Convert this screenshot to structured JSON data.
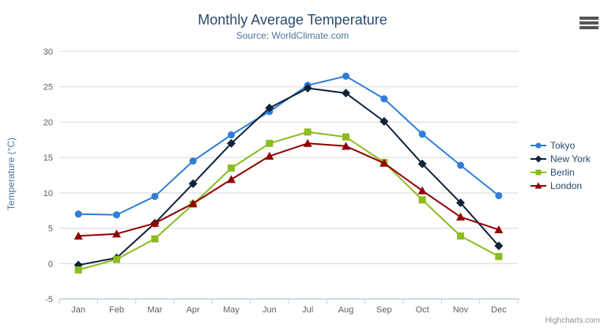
{
  "chart_data": {
    "type": "line",
    "title": "Monthly Average Temperature",
    "subtitle": "Source: WorldClimate.com",
    "xlabel": "",
    "ylabel": "Temperature (°C)",
    "categories": [
      "Jan",
      "Feb",
      "Mar",
      "Apr",
      "May",
      "Jun",
      "Jul",
      "Aug",
      "Sep",
      "Oct",
      "Nov",
      "Dec"
    ],
    "series": [
      {
        "name": "Tokyo",
        "color": "#2f7ed8",
        "marker": "circle",
        "values": [
          7.0,
          6.9,
          9.5,
          14.5,
          18.2,
          21.5,
          25.2,
          26.5,
          23.3,
          18.3,
          13.9,
          9.6
        ]
      },
      {
        "name": "New York",
        "color": "#0d233a",
        "marker": "diamond",
        "values": [
          -0.2,
          0.8,
          5.7,
          11.3,
          17.0,
          22.0,
          24.8,
          24.1,
          20.1,
          14.1,
          8.6,
          2.5
        ]
      },
      {
        "name": "Berlin",
        "color": "#8bbc21",
        "marker": "square",
        "values": [
          -0.9,
          0.6,
          3.5,
          8.4,
          13.5,
          17.0,
          18.6,
          17.9,
          14.3,
          9.0,
          3.9,
          1.0
        ]
      },
      {
        "name": "London",
        "color": "#910000",
        "marker": "triangle",
        "values": [
          3.9,
          4.2,
          5.7,
          8.5,
          11.9,
          15.2,
          17.0,
          16.6,
          14.2,
          10.3,
          6.6,
          4.8
        ]
      }
    ],
    "ylim": [
      -5,
      30
    ],
    "yticks": [
      -5,
      0,
      5,
      10,
      15,
      20,
      25,
      30
    ],
    "grid": true,
    "legend_position": "right",
    "styles": {
      "grid_color": "#d8d8d8",
      "axis_line_color": "#c0d0e0",
      "tick_label_color": "#606060",
      "title_color": "#274b6d",
      "subtitle_color": "#4d759e",
      "axis_title_color": "#4d759e",
      "legend_text_color": "#274b6d",
      "credits_color": "#909090",
      "background_color": "#ffffff"
    }
  },
  "footer": {
    "credits": "Highcharts.com"
  }
}
